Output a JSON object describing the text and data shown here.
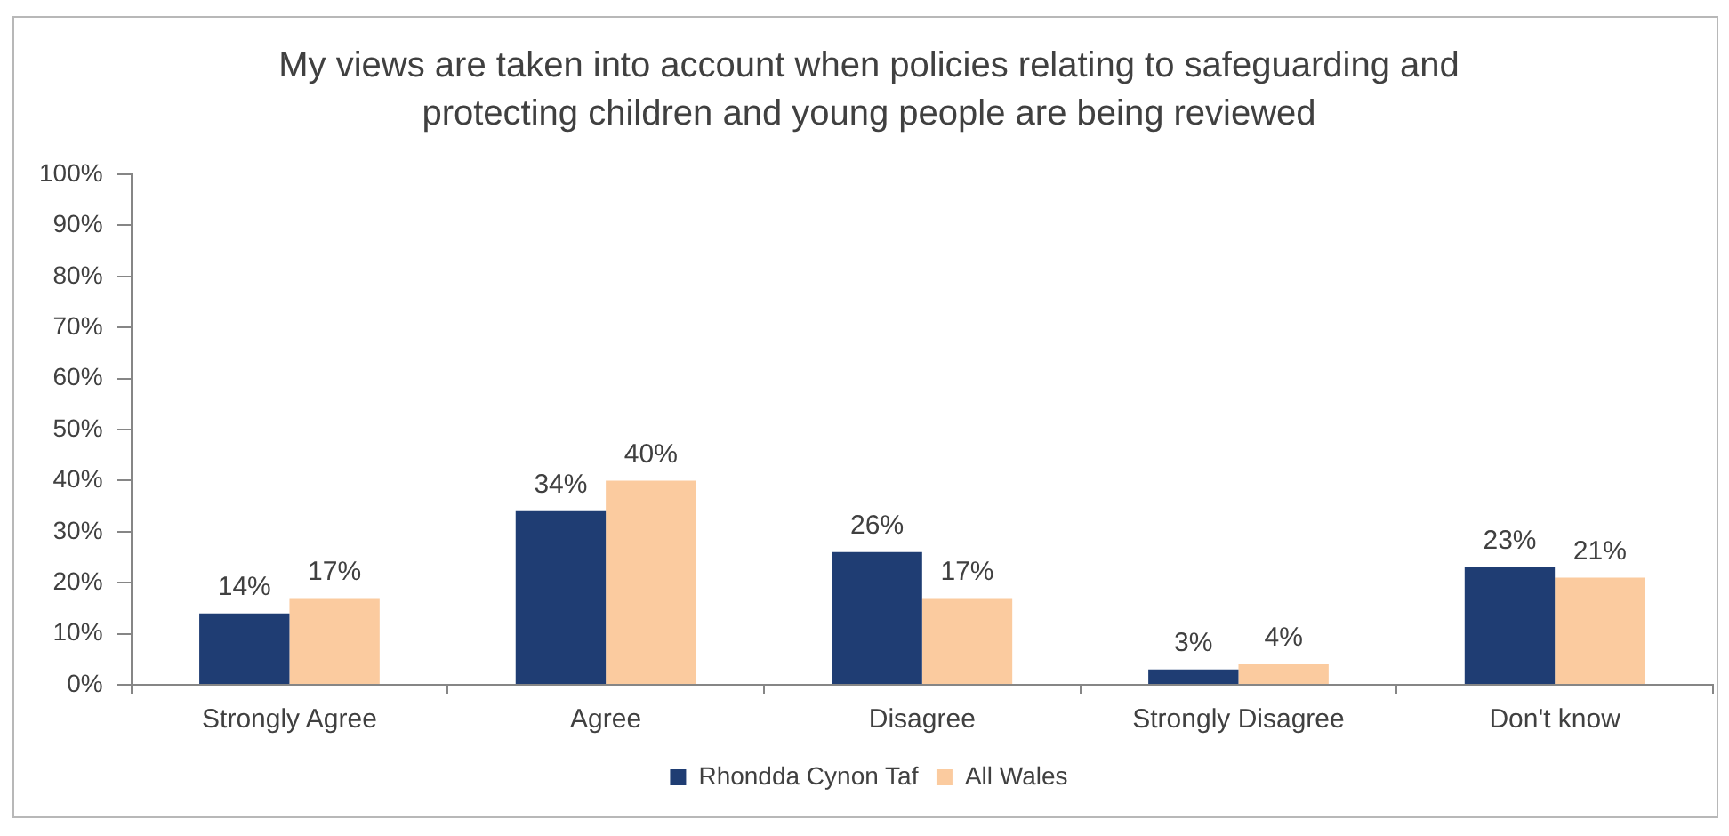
{
  "chart_data": {
    "type": "bar",
    "title": "My views are taken into account when policies relating to safeguarding and\nprotecting children and young people are being reviewed",
    "categories": [
      "Strongly Agree",
      "Agree",
      "Disagree",
      "Strongly Disagree",
      "Don't know"
    ],
    "series": [
      {
        "name": "Rhondda Cynon Taf",
        "color": "#1f3d73",
        "values": [
          14,
          34,
          26,
          3,
          23
        ],
        "value_labels": [
          "14%",
          "34%",
          "26%",
          "3%",
          "23%"
        ]
      },
      {
        "name": "All Wales",
        "color": "#fbcb9f",
        "values": [
          17,
          40,
          17,
          4,
          21
        ],
        "value_labels": [
          "17%",
          "40%",
          "17%",
          "4%",
          "21%"
        ]
      }
    ],
    "ylim": [
      0,
      100
    ],
    "yticks": [
      {
        "value": 0,
        "label": "0%"
      },
      {
        "value": 10,
        "label": "10%"
      },
      {
        "value": 20,
        "label": "20%"
      },
      {
        "value": 30,
        "label": "30%"
      },
      {
        "value": 40,
        "label": "40%"
      },
      {
        "value": 50,
        "label": "50%"
      },
      {
        "value": 60,
        "label": "60%"
      },
      {
        "value": 70,
        "label": "70%"
      },
      {
        "value": 80,
        "label": "80%"
      },
      {
        "value": 90,
        "label": "90%"
      },
      {
        "value": 100,
        "label": "100%"
      }
    ],
    "legend": "bottom"
  }
}
